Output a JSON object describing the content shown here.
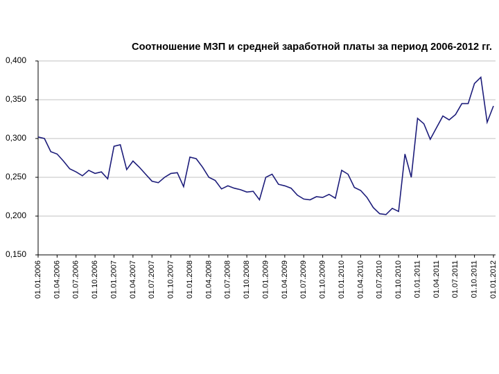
{
  "chart_data": {
    "type": "line",
    "title": "Соотношение МЗП и средней заработной платы за период 2006-2012 гг.",
    "categories": [
      "01.01.2006",
      null,
      null,
      "01.04.2006",
      null,
      null,
      "01.07.2006",
      null,
      null,
      "01.10.2006",
      null,
      null,
      "01.01.2007",
      null,
      null,
      "01.04.2007",
      null,
      null,
      "01.07.2007",
      null,
      null,
      "01.10.2007",
      null,
      null,
      "01.01.2008",
      null,
      null,
      "01.04.2008",
      null,
      null,
      "01.07.2008",
      null,
      null,
      "01.10.2008",
      null,
      null,
      "01.01.2009",
      null,
      null,
      "01.04.2009",
      null,
      null,
      "01.07.2009",
      null,
      null,
      "01.10.2009",
      null,
      null,
      "01.01.2010",
      null,
      null,
      "01.04.2010",
      null,
      null,
      "01.07.2010",
      null,
      null,
      "01.10.2010",
      null,
      null,
      "01.01.2011",
      null,
      null,
      "01.04.2011",
      null,
      null,
      "01.07.2011",
      null,
      null,
      "01.10.2011",
      null,
      null,
      "01.01.2012"
    ],
    "values": [
      0.302,
      0.3,
      0.283,
      0.28,
      0.271,
      0.261,
      0.257,
      0.252,
      0.259,
      0.255,
      0.257,
      0.248,
      0.29,
      0.292,
      0.26,
      0.271,
      0.263,
      0.254,
      0.245,
      0.243,
      0.25,
      0.255,
      0.256,
      0.238,
      0.276,
      0.274,
      0.263,
      0.25,
      0.246,
      0.235,
      0.239,
      0.236,
      0.234,
      0.231,
      0.232,
      0.221,
      0.25,
      0.254,
      0.241,
      0.239,
      0.236,
      0.227,
      0.222,
      0.221,
      0.225,
      0.224,
      0.228,
      0.223,
      0.259,
      0.254,
      0.237,
      0.233,
      0.224,
      0.211,
      0.203,
      0.202,
      0.21,
      0.206,
      0.28,
      0.25,
      0.326,
      0.319,
      0.299,
      0.314,
      0.329,
      0.324,
      0.331,
      0.345,
      0.345,
      0.371,
      0.379,
      0.321,
      0.342
    ],
    "color": "#1c1c7a",
    "ylim": [
      0.15,
      0.4
    ],
    "yticks": [
      {
        "value": 0.15,
        "label": "0,150"
      },
      {
        "value": 0.2,
        "label": "0,200"
      },
      {
        "value": 0.25,
        "label": "0,250"
      },
      {
        "value": 0.3,
        "label": "0,300"
      },
      {
        "value": 0.35,
        "label": "0,350"
      },
      {
        "value": 0.4,
        "label": "0,400"
      }
    ],
    "grid": true
  }
}
